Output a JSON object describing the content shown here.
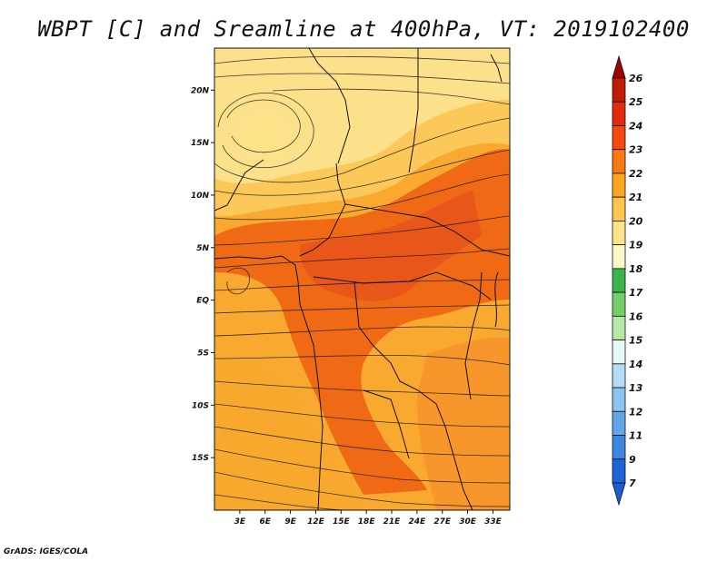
{
  "title": "WBPT [C] and Sreamline at 400hPa, VT: 2019102400",
  "credit": "GrADS: IGES/COLA",
  "map": {
    "lon_range": [
      0,
      35
    ],
    "lat_range": [
      -20,
      24
    ],
    "lat_ticks": [
      {
        "label": "20N",
        "value": 20
      },
      {
        "label": "15N",
        "value": 15
      },
      {
        "label": "10N",
        "value": 10
      },
      {
        "label": "5N",
        "value": 5
      },
      {
        "label": "EQ",
        "value": 0
      },
      {
        "label": "5S",
        "value": -5
      },
      {
        "label": "10S",
        "value": -10
      },
      {
        "label": "15S",
        "value": -15
      }
    ],
    "lon_ticks": [
      {
        "label": "3E",
        "value": 3
      },
      {
        "label": "6E",
        "value": 6
      },
      {
        "label": "9E",
        "value": 9
      },
      {
        "label": "12E",
        "value": 12
      },
      {
        "label": "15E",
        "value": 15
      },
      {
        "label": "18E",
        "value": 18
      },
      {
        "label": "21E",
        "value": 21
      },
      {
        "label": "24E",
        "value": 24
      },
      {
        "label": "27E",
        "value": 27
      },
      {
        "label": "30E",
        "value": 30
      },
      {
        "label": "33E",
        "value": 33
      }
    ]
  },
  "colorbar": {
    "levels": [
      {
        "label": "26",
        "color": "#a00000"
      },
      {
        "label": "25",
        "color": "#c01c04"
      },
      {
        "label": "24",
        "color": "#e02c0a"
      },
      {
        "label": "23",
        "color": "#f24a0c"
      },
      {
        "label": "22",
        "color": "#f97a10"
      },
      {
        "label": "21",
        "color": "#fda520"
      },
      {
        "label": "20",
        "color": "#fdc44e"
      },
      {
        "label": "19",
        "color": "#fde48a"
      },
      {
        "label": "18",
        "color": "#fdf6c8"
      },
      {
        "label": "17",
        "color": "#39b54a"
      },
      {
        "label": "16",
        "color": "#72cf6a"
      },
      {
        "label": "15",
        "color": "#b4e8a4"
      },
      {
        "label": "14",
        "color": "#e8f8f8"
      },
      {
        "label": "13",
        "color": "#b4dcf6"
      },
      {
        "label": "12",
        "color": "#8cc4f0"
      },
      {
        "label": "11",
        "color": "#62a6ea"
      },
      {
        "label": "9",
        "color": "#3f86e0"
      },
      {
        "label": "7",
        "color": "#1e64d4"
      }
    ],
    "bottom_color": "#1e5ad2"
  },
  "colors": {
    "hot": "#ee5a14",
    "warm": "#f59218",
    "mild": "#fbb035",
    "cool": "#fde08a",
    "line": "#111111"
  }
}
